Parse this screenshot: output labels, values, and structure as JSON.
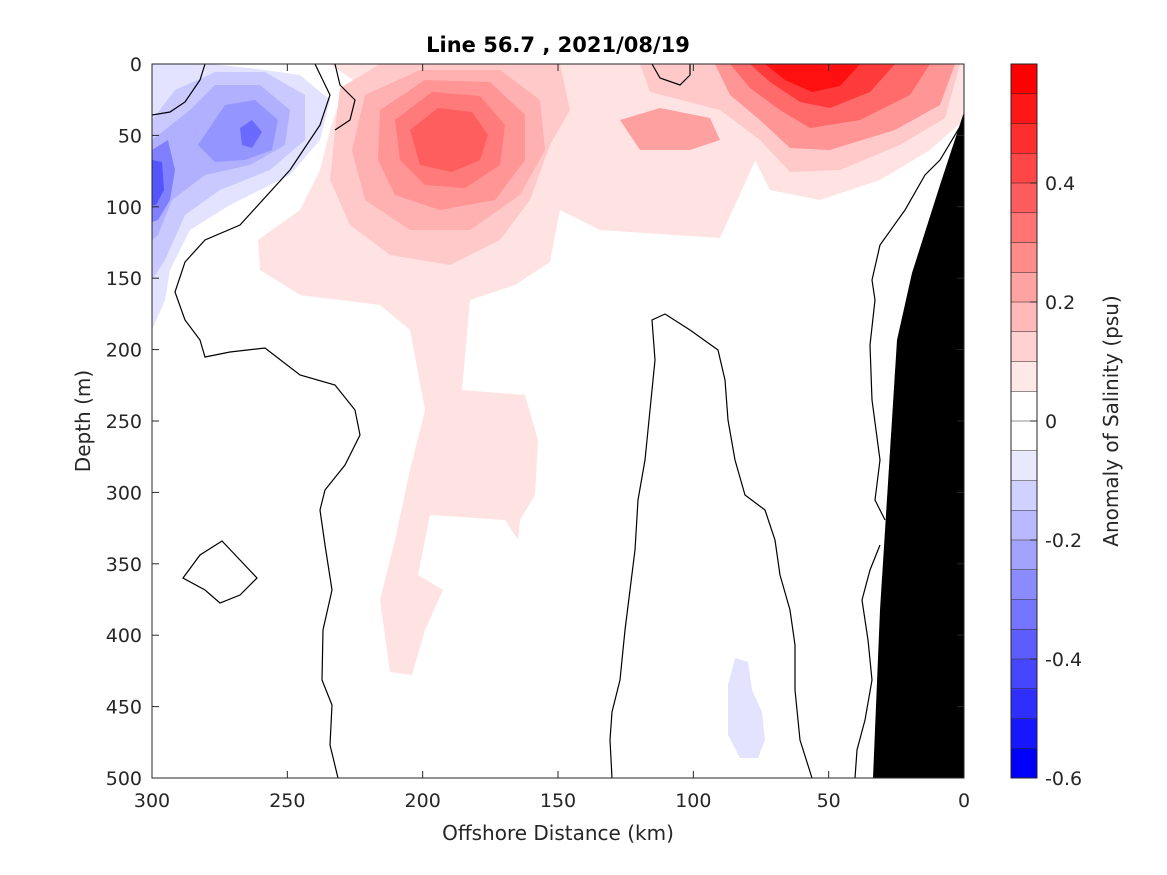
{
  "chart_data": {
    "type": "heatmap",
    "subtype": "filled-contour section",
    "title": "Line 56.7 , 2021/08/19",
    "xlabel": "Offshore Distance (km)",
    "ylabel": "Depth (m)",
    "colorbar_label": "Anomaly of Salinity (psu)",
    "x_reversed": true,
    "y_reversed": true,
    "xlim": [
      0,
      300
    ],
    "ylim": [
      0,
      500
    ],
    "xticks": [
      "300",
      "250",
      "200",
      "150",
      "100",
      "50",
      "0"
    ],
    "yticks": [
      "0",
      "50",
      "100",
      "150",
      "200",
      "250",
      "300",
      "350",
      "400",
      "450",
      "500"
    ],
    "colorbar_ticks": [
      "0.4",
      "0.2",
      "0",
      "-0.2",
      "-0.4",
      "-0.6"
    ],
    "colorbar_range": [
      -0.6,
      0.6
    ],
    "contour_interval": 0.05,
    "colors": {
      "positive_max": "#ff0000",
      "zero": "#ffffff",
      "negative_max": "#0000ff",
      "bathymetry": "#000000",
      "zero_contour": "#000000"
    },
    "features": [
      {
        "kind": "positive_max",
        "x_km": 60,
        "depth_m": 20,
        "value": 0.58
      },
      {
        "kind": "positive_max",
        "x_km": 195,
        "depth_m": 50,
        "value": 0.45
      },
      {
        "kind": "positive_max",
        "x_km": 110,
        "depth_m": 50,
        "value": 0.2
      },
      {
        "kind": "negative_max",
        "x_km": 300,
        "depth_m": 90,
        "value": -0.35
      },
      {
        "kind": "negative_max",
        "x_km": 265,
        "depth_m": 50,
        "value": -0.27
      },
      {
        "kind": "negative_max",
        "x_km": 82,
        "depth_m": 460,
        "value": -0.05
      }
    ],
    "bathymetry_profile": [
      {
        "x_km": 0,
        "depth_m": 35
      },
      {
        "x_km": 10,
        "depth_m": 110
      },
      {
        "x_km": 20,
        "depth_m": 150
      },
      {
        "x_km": 25,
        "depth_m": 195
      },
      {
        "x_km": 30,
        "depth_m": 350
      },
      {
        "x_km": 33,
        "depth_m": 500
      }
    ]
  }
}
